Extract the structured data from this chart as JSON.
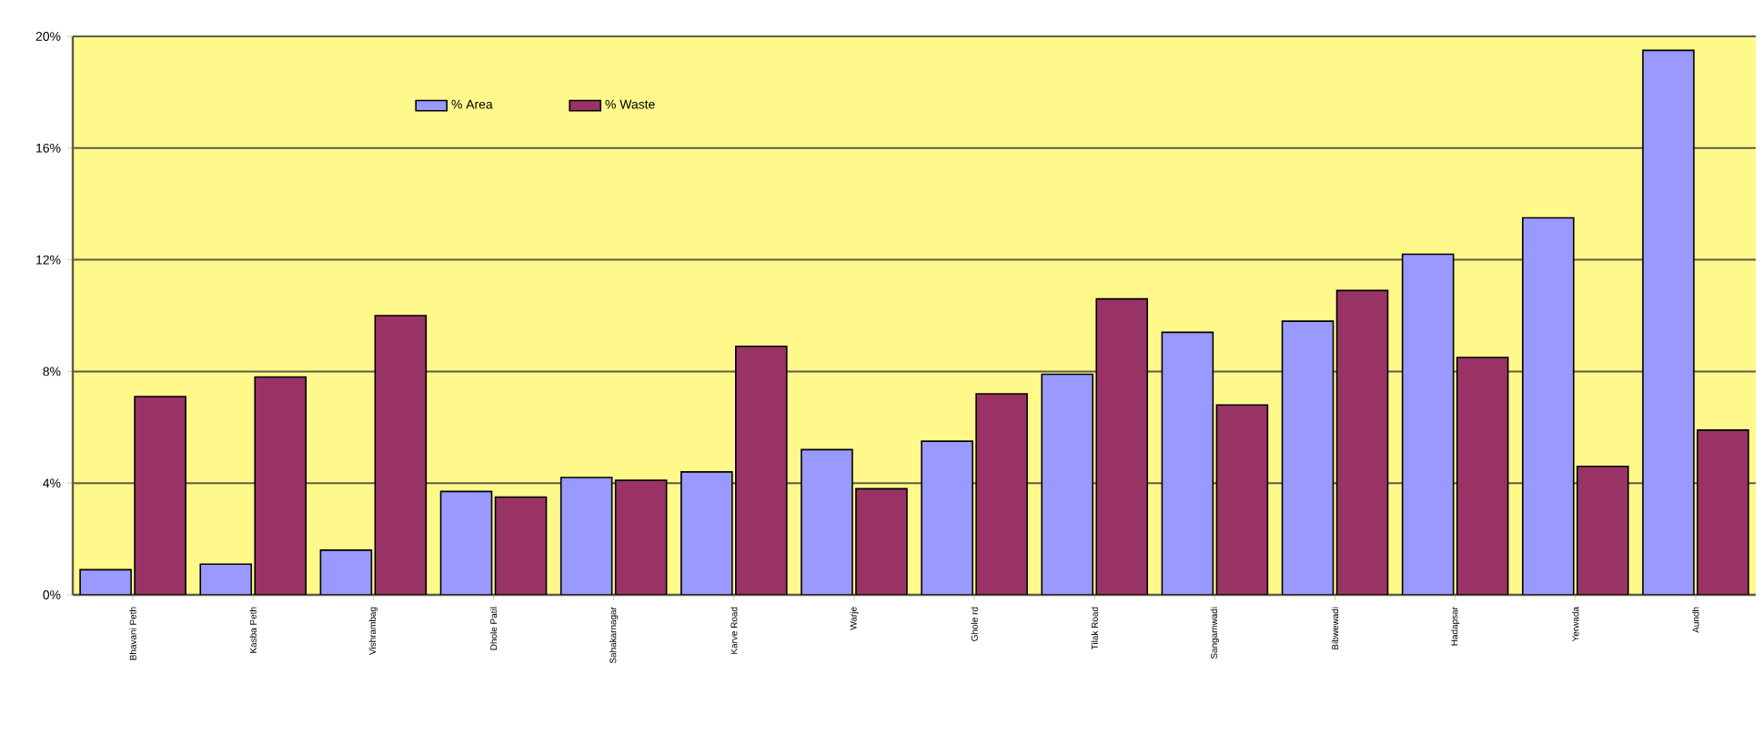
{
  "chart_data": {
    "type": "bar",
    "categories": [
      "Bhavani Peth",
      "Kasba Peth",
      "Vishrambag",
      "Dhole Patil",
      "Sahakarnagar",
      "Karve Road",
      "Warje",
      "Ghole rd",
      "Tilak Road",
      "Sangamwadi",
      "Bibwewadi",
      "Hadapsar",
      "Yerwada",
      "Aundh"
    ],
    "series": [
      {
        "name": "% Area",
        "color": "#9999ff",
        "values": [
          0.9,
          1.1,
          1.6,
          3.7,
          4.2,
          4.4,
          5.2,
          5.5,
          7.9,
          9.4,
          9.8,
          12.2,
          13.5,
          19.5
        ]
      },
      {
        "name": "% Waste",
        "color": "#993366",
        "values": [
          7.1,
          7.8,
          10.0,
          3.5,
          4.1,
          8.9,
          3.8,
          7.2,
          10.6,
          6.8,
          10.9,
          8.5,
          4.6,
          5.9
        ]
      }
    ],
    "ylim": [
      0,
      20
    ],
    "yticks": [
      {
        "value": 0,
        "label": "0%"
      },
      {
        "value": 4,
        "label": "4%"
      },
      {
        "value": 8,
        "label": "8%"
      },
      {
        "value": 12,
        "label": "12%"
      },
      {
        "value": 16,
        "label": "16%"
      },
      {
        "value": 20,
        "label": "20%"
      }
    ],
    "grid": "y",
    "legend": "top left"
  }
}
